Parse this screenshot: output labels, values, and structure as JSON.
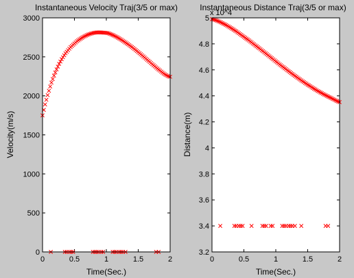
{
  "figure": {
    "background": "#c8c8c8",
    "axes_background": "#ffffff",
    "marker_color": "#ff0000"
  },
  "chart_data": [
    {
      "type": "scatter",
      "title": "Instantaneous Velocity Traj(3/5 or max)",
      "xlabel": "Time(Sec.)",
      "ylabel": "Velocity(m/s)",
      "xlim": [
        0,
        2
      ],
      "ylim": [
        0,
        3000
      ],
      "xticks": [
        0,
        0.5,
        1,
        1.5,
        2
      ],
      "xtick_labels": [
        "0",
        "0.5",
        "1",
        "1.5",
        "2"
      ],
      "yticks": [
        0,
        500,
        1000,
        1500,
        2000,
        2500,
        3000
      ],
      "ytick_labels": [
        "0",
        "500",
        "1000",
        "1500",
        "2000",
        "2500",
        "3000"
      ],
      "marker": "x",
      "series": [
        {
          "name": "trajectory",
          "x": [
            0.0,
            0.02,
            0.04,
            0.06,
            0.08,
            0.1,
            0.12,
            0.14,
            0.16,
            0.18,
            0.2,
            0.22,
            0.24,
            0.26,
            0.28,
            0.3,
            0.32,
            0.34,
            0.36,
            0.38,
            0.4,
            0.42,
            0.44,
            0.46,
            0.48,
            0.5,
            0.52,
            0.54,
            0.56,
            0.58,
            0.6,
            0.62,
            0.64,
            0.66,
            0.68,
            0.7,
            0.72,
            0.74,
            0.76,
            0.78,
            0.8,
            0.82,
            0.84,
            0.86,
            0.88,
            0.9,
            0.92,
            0.94,
            0.96,
            0.98,
            1.0,
            1.02,
            1.04,
            1.06,
            1.08,
            1.1,
            1.12,
            1.14,
            1.16,
            1.18,
            1.2,
            1.22,
            1.24,
            1.26,
            1.28,
            1.3,
            1.32,
            1.34,
            1.36,
            1.38,
            1.4,
            1.42,
            1.44,
            1.46,
            1.48,
            1.5,
            1.52,
            1.54,
            1.56,
            1.58,
            1.6,
            1.62,
            1.64,
            1.66,
            1.68,
            1.7,
            1.72,
            1.74,
            1.76,
            1.78,
            1.8,
            1.82,
            1.84,
            1.86,
            1.88,
            1.9,
            1.92,
            1.94,
            1.96,
            1.98,
            2.0
          ],
          "y": [
            1750,
            1820,
            1890,
            1950,
            2010,
            2065,
            2120,
            2170,
            2215,
            2260,
            2300,
            2340,
            2375,
            2410,
            2440,
            2470,
            2495,
            2520,
            2545,
            2565,
            2585,
            2605,
            2625,
            2640,
            2655,
            2670,
            2685,
            2700,
            2712,
            2724,
            2735,
            2745,
            2755,
            2764,
            2772,
            2780,
            2787,
            2793,
            2798,
            2803,
            2807,
            2810,
            2812,
            2813,
            2813,
            2813,
            2812,
            2811,
            2810,
            2809,
            2808,
            2805,
            2800,
            2794,
            2787,
            2780,
            2772,
            2764,
            2755,
            2746,
            2737,
            2727,
            2717,
            2706,
            2695,
            2684,
            2673,
            2662,
            2650,
            2638,
            2626,
            2613,
            2600,
            2587,
            2574,
            2561,
            2547,
            2533,
            2519,
            2505,
            2491,
            2477,
            2463,
            2449,
            2435,
            2420,
            2406,
            2392,
            2378,
            2364,
            2350,
            2337,
            2324,
            2311,
            2298,
            2286,
            2275,
            2265,
            2256,
            2248,
            2245
          ]
        },
        {
          "name": "baseline",
          "x": [
            0.13,
            0.35,
            0.38,
            0.42,
            0.45,
            0.48,
            0.79,
            0.82,
            0.85,
            0.88,
            0.92,
            0.95,
            1.1,
            1.13,
            1.16,
            1.2,
            1.23,
            1.26,
            1.3,
            1.78,
            1.82
          ],
          "y": [
            0,
            0,
            0,
            0,
            0,
            0,
            0,
            0,
            0,
            0,
            0,
            0,
            0,
            0,
            0,
            0,
            0,
            0,
            0,
            0,
            0
          ]
        }
      ]
    },
    {
      "type": "scatter",
      "title": "Instantaneous Distance Traj(3/5 or max)",
      "xlabel": "Time(Sec.)",
      "ylabel": "Distance(m)",
      "scale_note": "x 10^4",
      "xlim": [
        0,
        2
      ],
      "ylim": [
        3.2,
        5.0
      ],
      "xticks": [
        0,
        0.5,
        1,
        1.5,
        2
      ],
      "xtick_labels": [
        "0",
        "0.5",
        "1",
        "1.5",
        "2"
      ],
      "yticks": [
        3.2,
        3.4,
        3.6,
        3.8,
        4.0,
        4.2,
        4.4,
        4.6,
        4.8,
        5.0
      ],
      "ytick_labels": [
        "3.2",
        "3.4",
        "3.6",
        "3.8",
        "4",
        "4.2",
        "4.4",
        "4.6",
        "4.8",
        "5"
      ],
      "marker": "x",
      "series": [
        {
          "name": "trajectory",
          "x": [
            0.0,
            0.02,
            0.04,
            0.06,
            0.08,
            0.1,
            0.12,
            0.14,
            0.16,
            0.18,
            0.2,
            0.22,
            0.24,
            0.26,
            0.28,
            0.3,
            0.32,
            0.34,
            0.36,
            0.38,
            0.4,
            0.42,
            0.44,
            0.46,
            0.48,
            0.5,
            0.52,
            0.54,
            0.56,
            0.58,
            0.6,
            0.62,
            0.64,
            0.66,
            0.68,
            0.7,
            0.72,
            0.74,
            0.76,
            0.78,
            0.8,
            0.82,
            0.84,
            0.86,
            0.88,
            0.9,
            0.92,
            0.94,
            0.96,
            0.98,
            1.0,
            1.02,
            1.04,
            1.06,
            1.08,
            1.1,
            1.12,
            1.14,
            1.16,
            1.18,
            1.2,
            1.22,
            1.24,
            1.26,
            1.28,
            1.3,
            1.32,
            1.34,
            1.36,
            1.38,
            1.4,
            1.42,
            1.44,
            1.46,
            1.48,
            1.5,
            1.52,
            1.54,
            1.56,
            1.58,
            1.6,
            1.62,
            1.64,
            1.66,
            1.68,
            1.7,
            1.72,
            1.74,
            1.76,
            1.78,
            1.8,
            1.82,
            1.84,
            1.86,
            1.88,
            1.9,
            1.92,
            1.94,
            1.96,
            1.98,
            2.0
          ],
          "y": [
            4.99,
            4.988,
            4.985,
            4.982,
            4.978,
            4.974,
            4.97,
            4.965,
            4.96,
            4.955,
            4.95,
            4.945,
            4.939,
            4.933,
            4.927,
            4.921,
            4.915,
            4.909,
            4.902,
            4.896,
            4.889,
            4.882,
            4.875,
            4.868,
            4.861,
            4.854,
            4.847,
            4.84,
            4.833,
            4.826,
            4.818,
            4.811,
            4.803,
            4.796,
            4.788,
            4.781,
            4.773,
            4.766,
            4.758,
            4.75,
            4.743,
            4.735,
            4.727,
            4.72,
            4.712,
            4.704,
            4.696,
            4.689,
            4.681,
            4.673,
            4.665,
            4.658,
            4.65,
            4.642,
            4.635,
            4.627,
            4.62,
            4.612,
            4.605,
            4.597,
            4.59,
            4.583,
            4.575,
            4.568,
            4.561,
            4.554,
            4.547,
            4.54,
            4.533,
            4.526,
            4.519,
            4.512,
            4.506,
            4.499,
            4.493,
            4.486,
            4.48,
            4.474,
            4.467,
            4.461,
            4.455,
            4.449,
            4.443,
            4.437,
            4.432,
            4.426,
            4.421,
            4.415,
            4.41,
            4.405,
            4.4,
            4.395,
            4.39,
            4.385,
            4.38,
            4.375,
            4.37,
            4.365,
            4.36,
            4.356,
            4.352
          ]
        },
        {
          "name": "baseline",
          "x": [
            0.13,
            0.35,
            0.38,
            0.42,
            0.45,
            0.48,
            0.62,
            0.79,
            0.82,
            0.85,
            0.92,
            0.95,
            1.1,
            1.13,
            1.16,
            1.2,
            1.23,
            1.26,
            1.3,
            1.4,
            1.78,
            1.82
          ],
          "y": [
            3.4,
            3.4,
            3.4,
            3.4,
            3.4,
            3.4,
            3.4,
            3.4,
            3.4,
            3.4,
            3.4,
            3.4,
            3.4,
            3.4,
            3.4,
            3.4,
            3.4,
            3.4,
            3.4,
            3.4,
            3.4,
            3.4
          ]
        }
      ]
    }
  ]
}
